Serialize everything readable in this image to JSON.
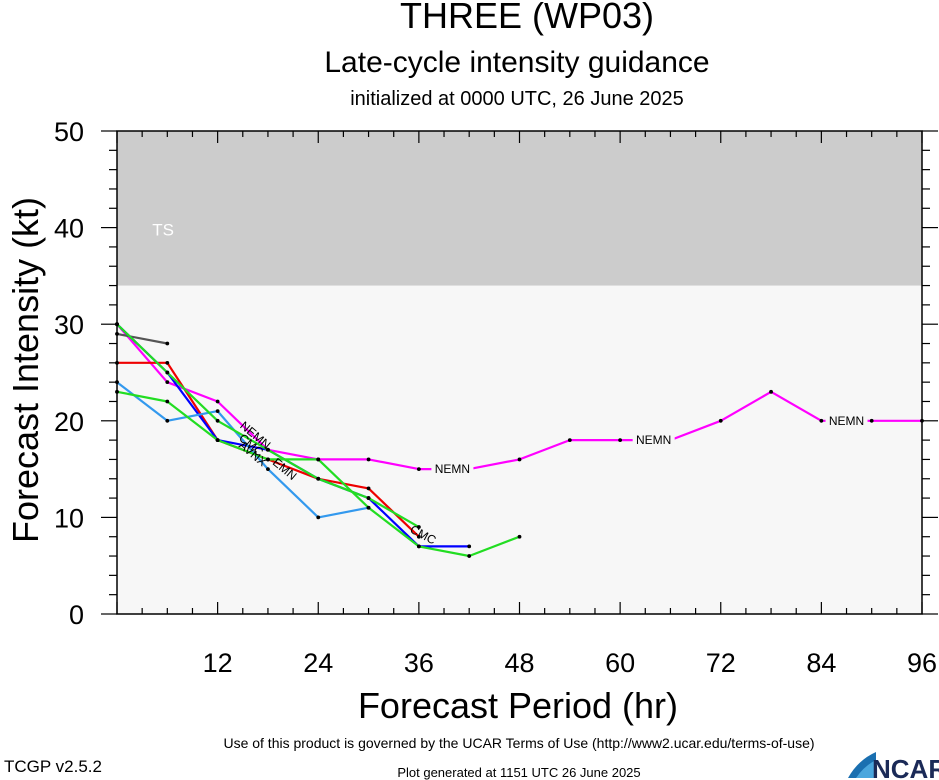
{
  "chart_data": {
    "type": "line",
    "title": "THREE (WP03)",
    "subtitle": "Late-cycle intensity guidance",
    "subtitle2": "initialized at 0000 UTC, 26 June 2025",
    "xlabel": "Forecast Period (hr)",
    "ylabel": "Forecast Intensity (kt)",
    "xlim": [
      0,
      96
    ],
    "ylim": [
      0,
      50
    ],
    "xticks": [
      "12",
      "24",
      "36",
      "48",
      "60",
      "72",
      "84",
      "96"
    ],
    "yticks": [
      "0",
      "10",
      "20",
      "30",
      "40",
      "50"
    ],
    "bands": [
      {
        "label": "TS",
        "from": 34,
        "to": 50,
        "color": "#cccccc"
      }
    ],
    "plot_background": "#f7f7f7",
    "series": [
      {
        "color": "#ff00ff",
        "points": [
          [
            0,
            30
          ],
          [
            6,
            24
          ],
          [
            12,
            22
          ],
          [
            18,
            17
          ],
          [
            24,
            16
          ],
          [
            30,
            16
          ],
          [
            36,
            15
          ],
          [
            42,
            15
          ],
          [
            48,
            16
          ],
          [
            54,
            18
          ],
          [
            60,
            18
          ],
          [
            66,
            18
          ],
          [
            72,
            20
          ],
          [
            78,
            23
          ],
          [
            84,
            20
          ],
          [
            90,
            20
          ],
          [
            96,
            20
          ]
        ]
      },
      {
        "color": "#555555",
        "points": [
          [
            0,
            29
          ],
          [
            6,
            28
          ]
        ]
      },
      {
        "color": "#ee0000",
        "points": [
          [
            0,
            26
          ],
          [
            6,
            26
          ],
          [
            12,
            18
          ],
          [
            18,
            16
          ],
          [
            24,
            14
          ],
          [
            30,
            13
          ],
          [
            36,
            8
          ]
        ]
      },
      {
        "color": "#0000ff",
        "points": [
          [
            0,
            30
          ],
          [
            6,
            25
          ],
          [
            12,
            18
          ],
          [
            18,
            17
          ],
          [
            24,
            14
          ],
          [
            30,
            12
          ],
          [
            36,
            7
          ],
          [
            42,
            7
          ]
        ]
      },
      {
        "color": "#3399ee",
        "points": [
          [
            0,
            24
          ],
          [
            6,
            20
          ],
          [
            12,
            21
          ],
          [
            18,
            15
          ],
          [
            24,
            10
          ],
          [
            30,
            11
          ]
        ]
      },
      {
        "color": "#22dd22",
        "points": [
          [
            0,
            23
          ],
          [
            6,
            22
          ],
          [
            12,
            18
          ],
          [
            18,
            16
          ],
          [
            24,
            16
          ],
          [
            30,
            11
          ],
          [
            36,
            7
          ],
          [
            42,
            6
          ],
          [
            48,
            8
          ]
        ]
      },
      {
        "color": "#22dd22",
        "points": [
          [
            0,
            30
          ],
          [
            6,
            25
          ],
          [
            12,
            20
          ],
          [
            18,
            17
          ],
          [
            24,
            14
          ],
          [
            30,
            12
          ],
          [
            36,
            9
          ]
        ]
      }
    ],
    "labels": [
      {
        "text": "NEMN",
        "x": 40,
        "y": 15,
        "rotate": 0
      },
      {
        "text": "NEMN",
        "x": 64,
        "y": 18,
        "rotate": 0
      },
      {
        "text": "NEMN",
        "x": 87,
        "y": 20,
        "rotate": 0
      },
      {
        "text": "NEMN",
        "x": 16.5,
        "y": 18.5,
        "rotate": 40
      },
      {
        "text": "CMC",
        "x": 16,
        "y": 17.5,
        "rotate": 40
      },
      {
        "text": "AVNX",
        "x": 16.2,
        "y": 16.6,
        "rotate": 40
      },
      {
        "text": "EMN",
        "x": 20,
        "y": 15,
        "rotate": 40
      },
      {
        "text": "CMC",
        "x": 36.5,
        "y": 8.2,
        "rotate": 28
      }
    ]
  },
  "footer": {
    "terms": "Use of this product is governed by the UCAR Terms of Use (http://www2.ucar.edu/terms-of-use)",
    "version": "TCGP v2.5.2",
    "generated": "Plot generated at 1151 UTC   26 June 2025",
    "logo_text": "NCAR"
  }
}
